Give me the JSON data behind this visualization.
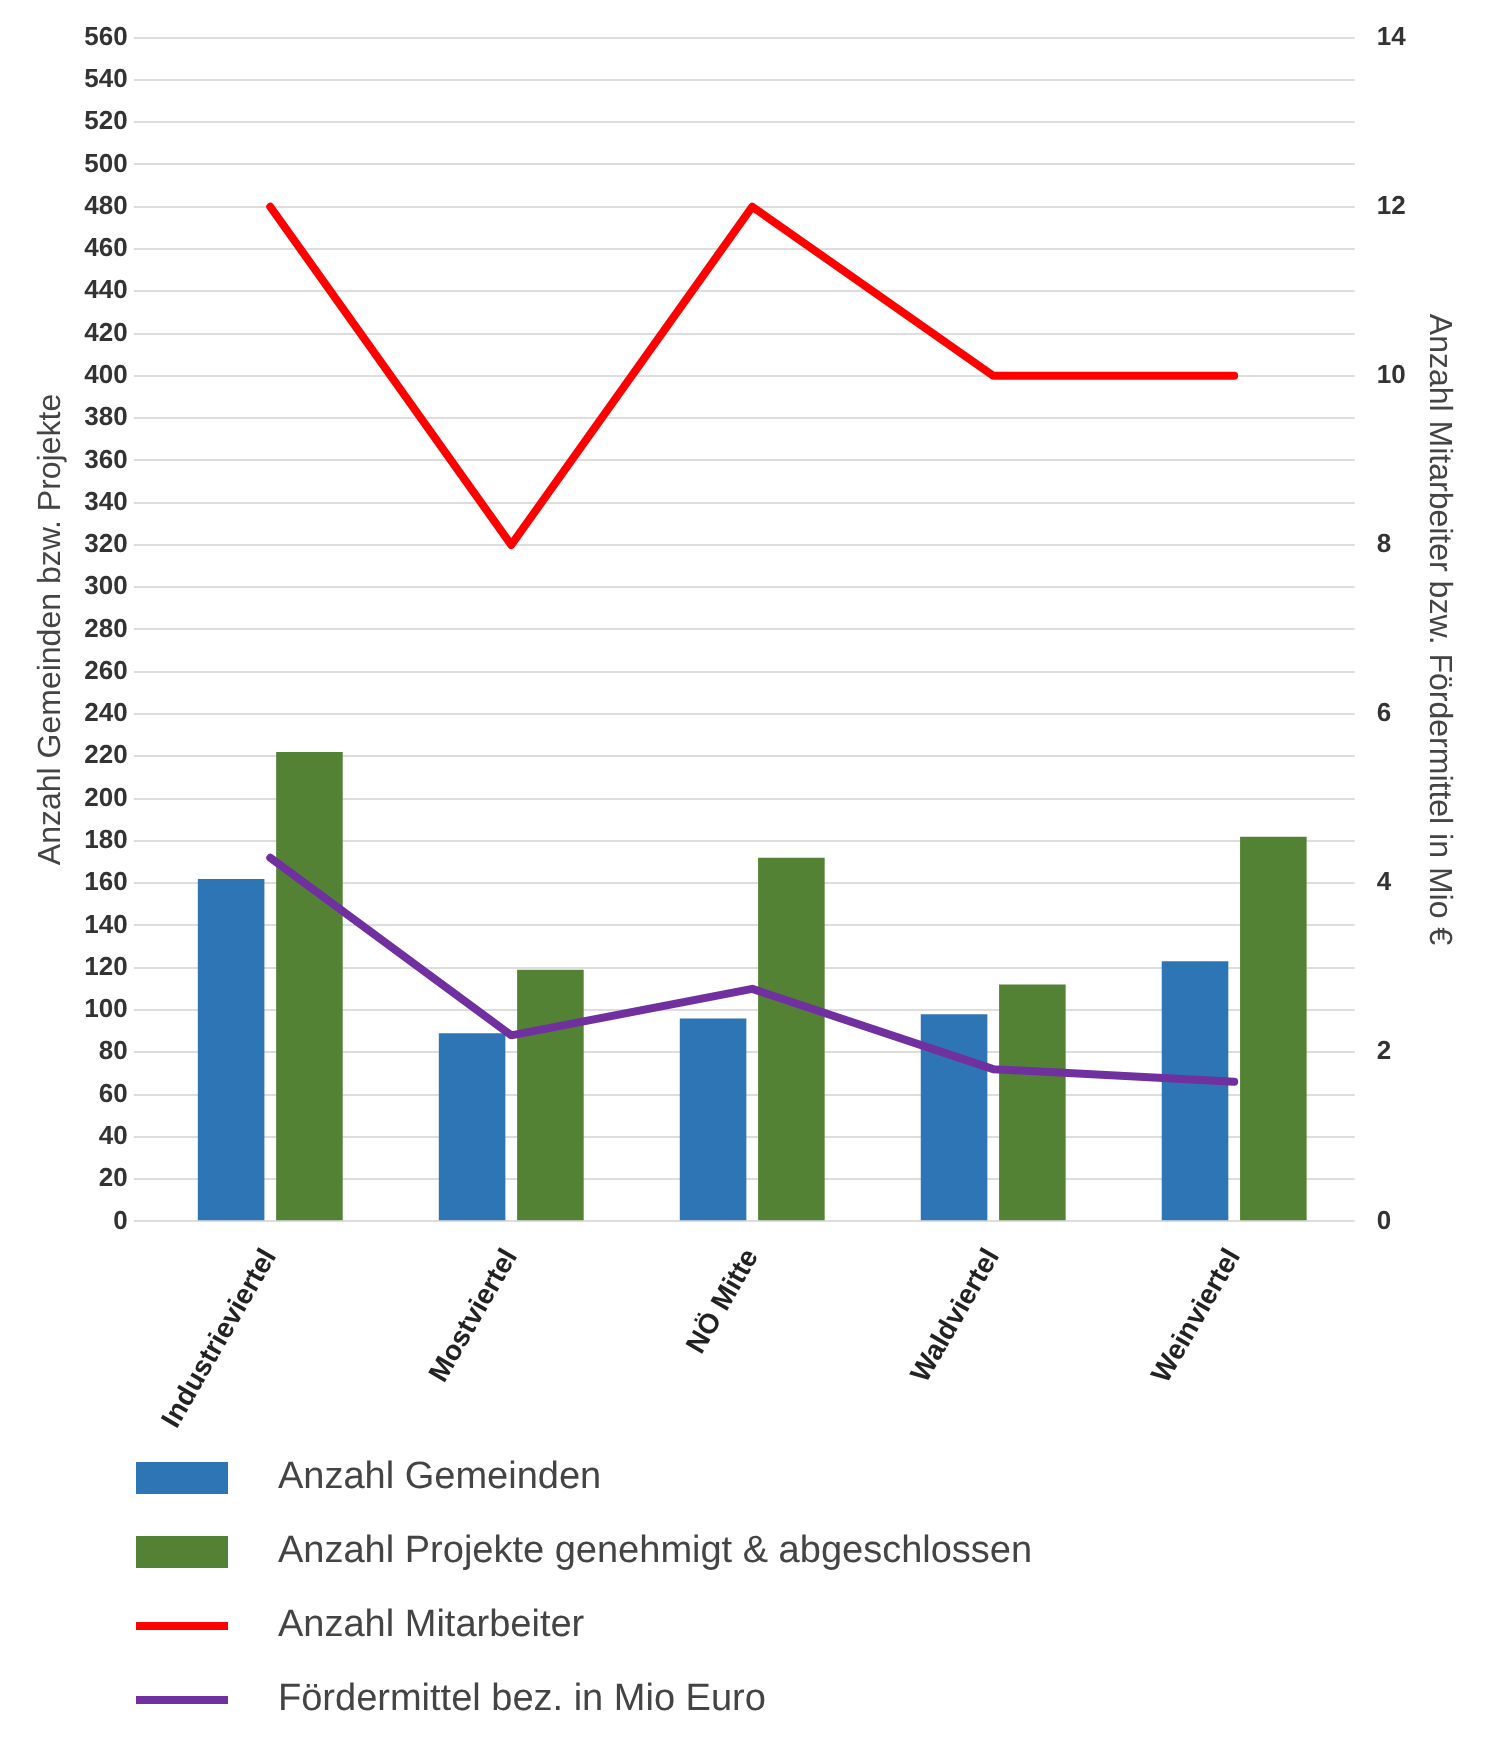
{
  "chart_data": {
    "type": "bar",
    "ylabel": "Anzahl Gemeinden bzw. Projekte",
    "y2label": "Anzahl Mitarbeiter bzw. Fördermittel in Mio €",
    "categories": [
      "Industrieviertel",
      "Mostviertel",
      "NÖ Mitte",
      "Waldviertel",
      "Weinviertel"
    ],
    "series": [
      {
        "name": "Anzahl Gemeinden",
        "color": "#2e75b6",
        "values": [
          162,
          89,
          96,
          98,
          123
        ]
      },
      {
        "name": "Anzahl Projekte genehmigt & abgeschlossen",
        "color": "#548235",
        "values": [
          222,
          119,
          172,
          112,
          182
        ]
      },
      {
        "name": "Anzahl Mitarbeiter",
        "type": "line",
        "axis": "y2",
        "color": "#ff0000",
        "values": [
          12,
          8,
          12,
          10,
          10
        ]
      },
      {
        "name": "Fördermittel bez. in Mio Euro",
        "type": "line",
        "axis": "y2",
        "color": "#7030a0",
        "values": [
          4.3,
          2.2,
          2.75,
          1.8,
          1.65
        ]
      }
    ],
    "ylim": [
      0,
      560
    ],
    "yticks": [
      0,
      20,
      40,
      60,
      80,
      100,
      120,
      140,
      160,
      180,
      200,
      220,
      240,
      260,
      280,
      300,
      320,
      340,
      360,
      380,
      400,
      420,
      440,
      460,
      480,
      500,
      520,
      540,
      560
    ],
    "y2lim": [
      0,
      14
    ],
    "y2ticks": [
      0,
      2,
      4,
      6,
      8,
      10,
      12,
      14
    ],
    "grid": "y",
    "legend": "bottom",
    "marker": "none"
  }
}
